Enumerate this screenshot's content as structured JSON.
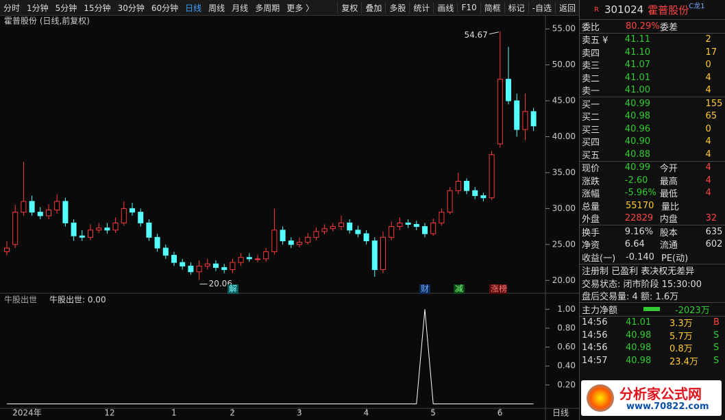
{
  "toolbar": {
    "left": [
      "分时",
      "1分钟",
      "5分钟",
      "15分钟",
      "30分钟",
      "60分钟",
      "日线",
      "周线",
      "月线",
      "多周期",
      "更多 〉"
    ],
    "right": [
      "复权",
      "叠加",
      "多股",
      "统计",
      "画线",
      "F10",
      "简框",
      "标记",
      "-自选",
      "返回"
    ]
  },
  "chart_data": [
    {
      "type": "candlestick",
      "title": "霍普股份 (日线,前复权)",
      "categories": [
        null,
        "2024年",
        null,
        null,
        null,
        null,
        null,
        null,
        null,
        null,
        null,
        null,
        "12",
        null,
        null,
        null,
        null,
        null,
        null,
        null,
        "1",
        null,
        null,
        null,
        null,
        null,
        null,
        "2",
        null,
        null,
        null,
        null,
        null,
        null,
        null,
        "3",
        null,
        null,
        null,
        null,
        null,
        null,
        null,
        "4",
        null,
        null,
        null,
        null,
        null,
        null,
        null,
        "5",
        null,
        null,
        null,
        null,
        null,
        null,
        null,
        "6",
        null,
        null,
        null,
        null
      ],
      "open": [
        24.0,
        25.0,
        29.5,
        31.0,
        29.5,
        29.0,
        29.8,
        31.0,
        28.0,
        26.2,
        26.0,
        27.0,
        27.3,
        27.0,
        28.0,
        30.0,
        29.5,
        28.0,
        26.0,
        24.5,
        23.5,
        22.5,
        22.0,
        21.2,
        22.0,
        22.3,
        21.8,
        21.5,
        22.5,
        23.2,
        23.0,
        23.0,
        24.0,
        27.0,
        25.5,
        25.0,
        25.3,
        26.0,
        26.8,
        27.2,
        27.5,
        28.0,
        27.0,
        26.5,
        25.5,
        21.5,
        26.0,
        27.5,
        28.0,
        27.8,
        27.5,
        26.5,
        28.0,
        29.5,
        32.5,
        33.8,
        32.5,
        31.8,
        31.5,
        39.0,
        48.0,
        45.0,
        41.0,
        43.5
      ],
      "high": [
        25.5,
        30.5,
        36.5,
        31.8,
        30.2,
        30.6,
        32.0,
        31.5,
        28.5,
        27.0,
        27.8,
        28.0,
        28.0,
        28.8,
        31.0,
        30.8,
        30.0,
        28.5,
        26.5,
        25.0,
        24.0,
        23.0,
        22.5,
        22.8,
        23.0,
        22.8,
        22.3,
        23.0,
        23.8,
        23.8,
        23.6,
        24.5,
        30.0,
        27.5,
        26.0,
        26.0,
        26.6,
        27.4,
        27.8,
        28.0,
        29.0,
        28.5,
        27.6,
        27.0,
        26.0,
        26.8,
        28.2,
        28.8,
        28.5,
        28.3,
        28.0,
        28.6,
        30.0,
        33.0,
        35.0,
        34.2,
        33.0,
        32.2,
        38.0,
        54.67,
        52.5,
        46.0,
        46.0,
        44.0
      ],
      "low": [
        23.5,
        24.5,
        29.0,
        29.0,
        28.5,
        28.5,
        29.3,
        27.5,
        25.5,
        25.5,
        25.6,
        26.6,
        26.5,
        26.6,
        27.6,
        29.0,
        27.5,
        25.5,
        24.0,
        23.0,
        22.0,
        21.5,
        20.8,
        20.06,
        21.5,
        21.3,
        21.0,
        21.0,
        22.0,
        22.6,
        22.5,
        22.6,
        23.6,
        25.0,
        24.5,
        24.6,
        25.0,
        25.6,
        26.4,
        26.8,
        27.0,
        26.5,
        26.0,
        25.0,
        20.5,
        21.0,
        25.6,
        27.0,
        27.3,
        27.0,
        26.0,
        26.2,
        27.6,
        29.2,
        32.0,
        32.0,
        31.3,
        31.0,
        31.2,
        38.5,
        44.5,
        40.0,
        39.5,
        40.8
      ],
      "close": [
        24.5,
        29.5,
        31.0,
        29.5,
        29.0,
        29.8,
        31.0,
        28.0,
        26.2,
        26.0,
        27.0,
        27.3,
        27.0,
        28.0,
        30.0,
        29.5,
        28.0,
        26.0,
        24.5,
        23.5,
        22.5,
        22.0,
        21.2,
        22.0,
        22.3,
        21.8,
        21.5,
        22.5,
        23.2,
        23.0,
        23.0,
        24.0,
        27.0,
        25.5,
        25.0,
        25.3,
        26.0,
        26.8,
        27.2,
        27.5,
        28.0,
        27.0,
        26.5,
        25.5,
        21.5,
        26.0,
        27.5,
        28.0,
        27.8,
        27.5,
        26.5,
        28.0,
        29.5,
        32.5,
        33.8,
        32.5,
        31.8,
        31.5,
        37.5,
        48.0,
        45.0,
        41.0,
        43.5,
        41.5
      ],
      "ylim": [
        18.5,
        55.5
      ],
      "yticks": [
        {
          "value": 20,
          "label": "20.00"
        },
        {
          "value": 25,
          "label": "25.00"
        },
        {
          "value": 30,
          "label": "30.00"
        },
        {
          "value": 35,
          "label": "35.00"
        },
        {
          "value": 40,
          "label": "40.00"
        },
        {
          "value": 45,
          "label": "45.00"
        },
        {
          "value": 50,
          "label": "50.00"
        },
        {
          "value": 55,
          "label": "55.00"
        }
      ],
      "up_color": "#ff3c3c",
      "down_color": "#54ffff",
      "grid": false,
      "events": [
        "解",
        "财",
        "减",
        "涨榜"
      ],
      "period_label": "日线"
    },
    {
      "type": "line",
      "title": "牛股出世",
      "value_text": "牛股出世: 0.00",
      "color": "#ffffff",
      "values": [
        0,
        0,
        0,
        0,
        0,
        0,
        0,
        0,
        0,
        0,
        0,
        0,
        0,
        0,
        0,
        0,
        0,
        0,
        0,
        0,
        0,
        0,
        0,
        0,
        0,
        0,
        0,
        0,
        0,
        0,
        0,
        0,
        0,
        0,
        0,
        0,
        0,
        0,
        0,
        0,
        0,
        0,
        0,
        0,
        0,
        0,
        0,
        0,
        0,
        0,
        1,
        0,
        0,
        0,
        0,
        0,
        0,
        0,
        0,
        0,
        0,
        0,
        0,
        0
      ],
      "ylim": [
        -0.04,
        1.14
      ],
      "yticks": [
        {
          "value": 0.2,
          "label": "0.20"
        },
        {
          "value": 0.4,
          "label": "0.40"
        },
        {
          "value": 0.6,
          "label": "0.60"
        },
        {
          "value": 0.8,
          "label": "0.80"
        },
        {
          "value": 1,
          "label": "1.00"
        }
      ],
      "grid": false
    }
  ],
  "quote": {
    "badge": "R",
    "code": "301024",
    "name": "霍普股份",
    "tag": "C龙1",
    "ratio": [
      "委比",
      "80.29%",
      "委差"
    ],
    "sell": [
      [
        "卖五 ¥",
        "41.11",
        "2"
      ],
      [
        "卖四",
        "41.10",
        "17"
      ],
      [
        "卖三",
        "41.07",
        "0"
      ],
      [
        "卖二",
        "41.01",
        "4"
      ],
      [
        "卖一",
        "41.00",
        "4"
      ]
    ],
    "buy": [
      [
        "买一",
        "40.99",
        "155"
      ],
      [
        "买二",
        "40.98",
        "65"
      ],
      [
        "买三",
        "40.96",
        "0"
      ],
      [
        "买四",
        "40.90",
        "4"
      ],
      [
        "买五",
        "40.88",
        "4"
      ]
    ],
    "stats": [
      [
        "现价",
        "40.99",
        "今开",
        "4"
      ],
      [
        "涨跌",
        "-2.60",
        "最高",
        "4"
      ],
      [
        "涨幅",
        "-5.96%",
        "最低",
        "4"
      ],
      [
        "总量",
        "55170",
        "量比"
      ],
      [
        "外盘",
        "22829",
        "内盘",
        "32"
      ]
    ],
    "stats2": [
      [
        "换手",
        "9.16%",
        "股本",
        "635"
      ],
      [
        "净资",
        "6.64",
        "流通",
        "602"
      ],
      [
        "收益(一)",
        "-0.140",
        "PE(动)"
      ]
    ],
    "notes": [
      "注册制 已盈利 表决权无差异",
      "交易状态: 闭市阶段 15:30:00",
      "盘后交易量: 4  额: 1.6万"
    ],
    "flow": [
      "主力净额",
      "-2023万"
    ],
    "trades": [
      [
        "14:56",
        "41.01",
        "3.3万",
        "B"
      ],
      [
        "14:56",
        "40.98",
        "5.7万",
        "S"
      ],
      [
        "14:56",
        "40.98",
        "0.8万",
        "S"
      ],
      [
        "14:57",
        "40.98",
        "23.4万",
        "S"
      ]
    ]
  },
  "logo": {
    "name": "分析家公式网",
    "url": "www.70822.com"
  }
}
